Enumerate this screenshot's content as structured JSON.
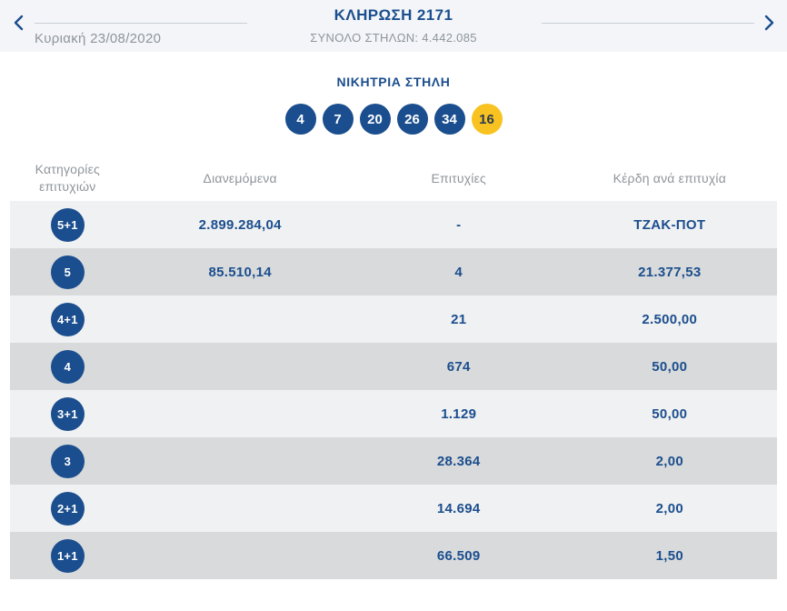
{
  "header": {
    "title": "ΚΛΗΡΩΣΗ 2171",
    "subtitle": "ΣΥΝΟΛΟ ΣΤΗΛΩΝ: 4.442.085",
    "date": "Κυριακή 23/08/2020",
    "prev_icon": "chevron-left",
    "next_icon": "chevron-right"
  },
  "winning": {
    "title": "ΝΙΚΗΤΡΙΑ ΣΤΗΛΗ",
    "numbers": [
      "4",
      "7",
      "20",
      "26",
      "34"
    ],
    "bonus": "16"
  },
  "table": {
    "headers": [
      "Κατηγορίες επιτυχιών",
      "Διανεμόμενα",
      "Επιτυχίες",
      "Κέρδη ανά επιτυχία"
    ],
    "rows": [
      {
        "category": "5+1",
        "distributed": "2.899.284,04",
        "winners": "-",
        "prize": "ΤΖΑΚ-ΠΟΤ"
      },
      {
        "category": "5",
        "distributed": "85.510,14",
        "winners": "4",
        "prize": "21.377,53"
      },
      {
        "category": "4+1",
        "distributed": "",
        "winners": "21",
        "prize": "2.500,00"
      },
      {
        "category": "4",
        "distributed": "",
        "winners": "674",
        "prize": "50,00"
      },
      {
        "category": "3+1",
        "distributed": "",
        "winners": "1.129",
        "prize": "50,00"
      },
      {
        "category": "3",
        "distributed": "",
        "winners": "28.364",
        "prize": "2,00"
      },
      {
        "category": "2+1",
        "distributed": "",
        "winners": "14.694",
        "prize": "2,00"
      },
      {
        "category": "1+1",
        "distributed": "",
        "winners": "66.509",
        "prize": "1,50"
      }
    ]
  },
  "colors": {
    "navy": "#1b4e8e",
    "yellow": "#f8c321",
    "band_bg": "#f3f5f8",
    "row_light": "#f0f1f2",
    "row_dark": "#d8dadb",
    "gray_text": "#8f959c"
  }
}
